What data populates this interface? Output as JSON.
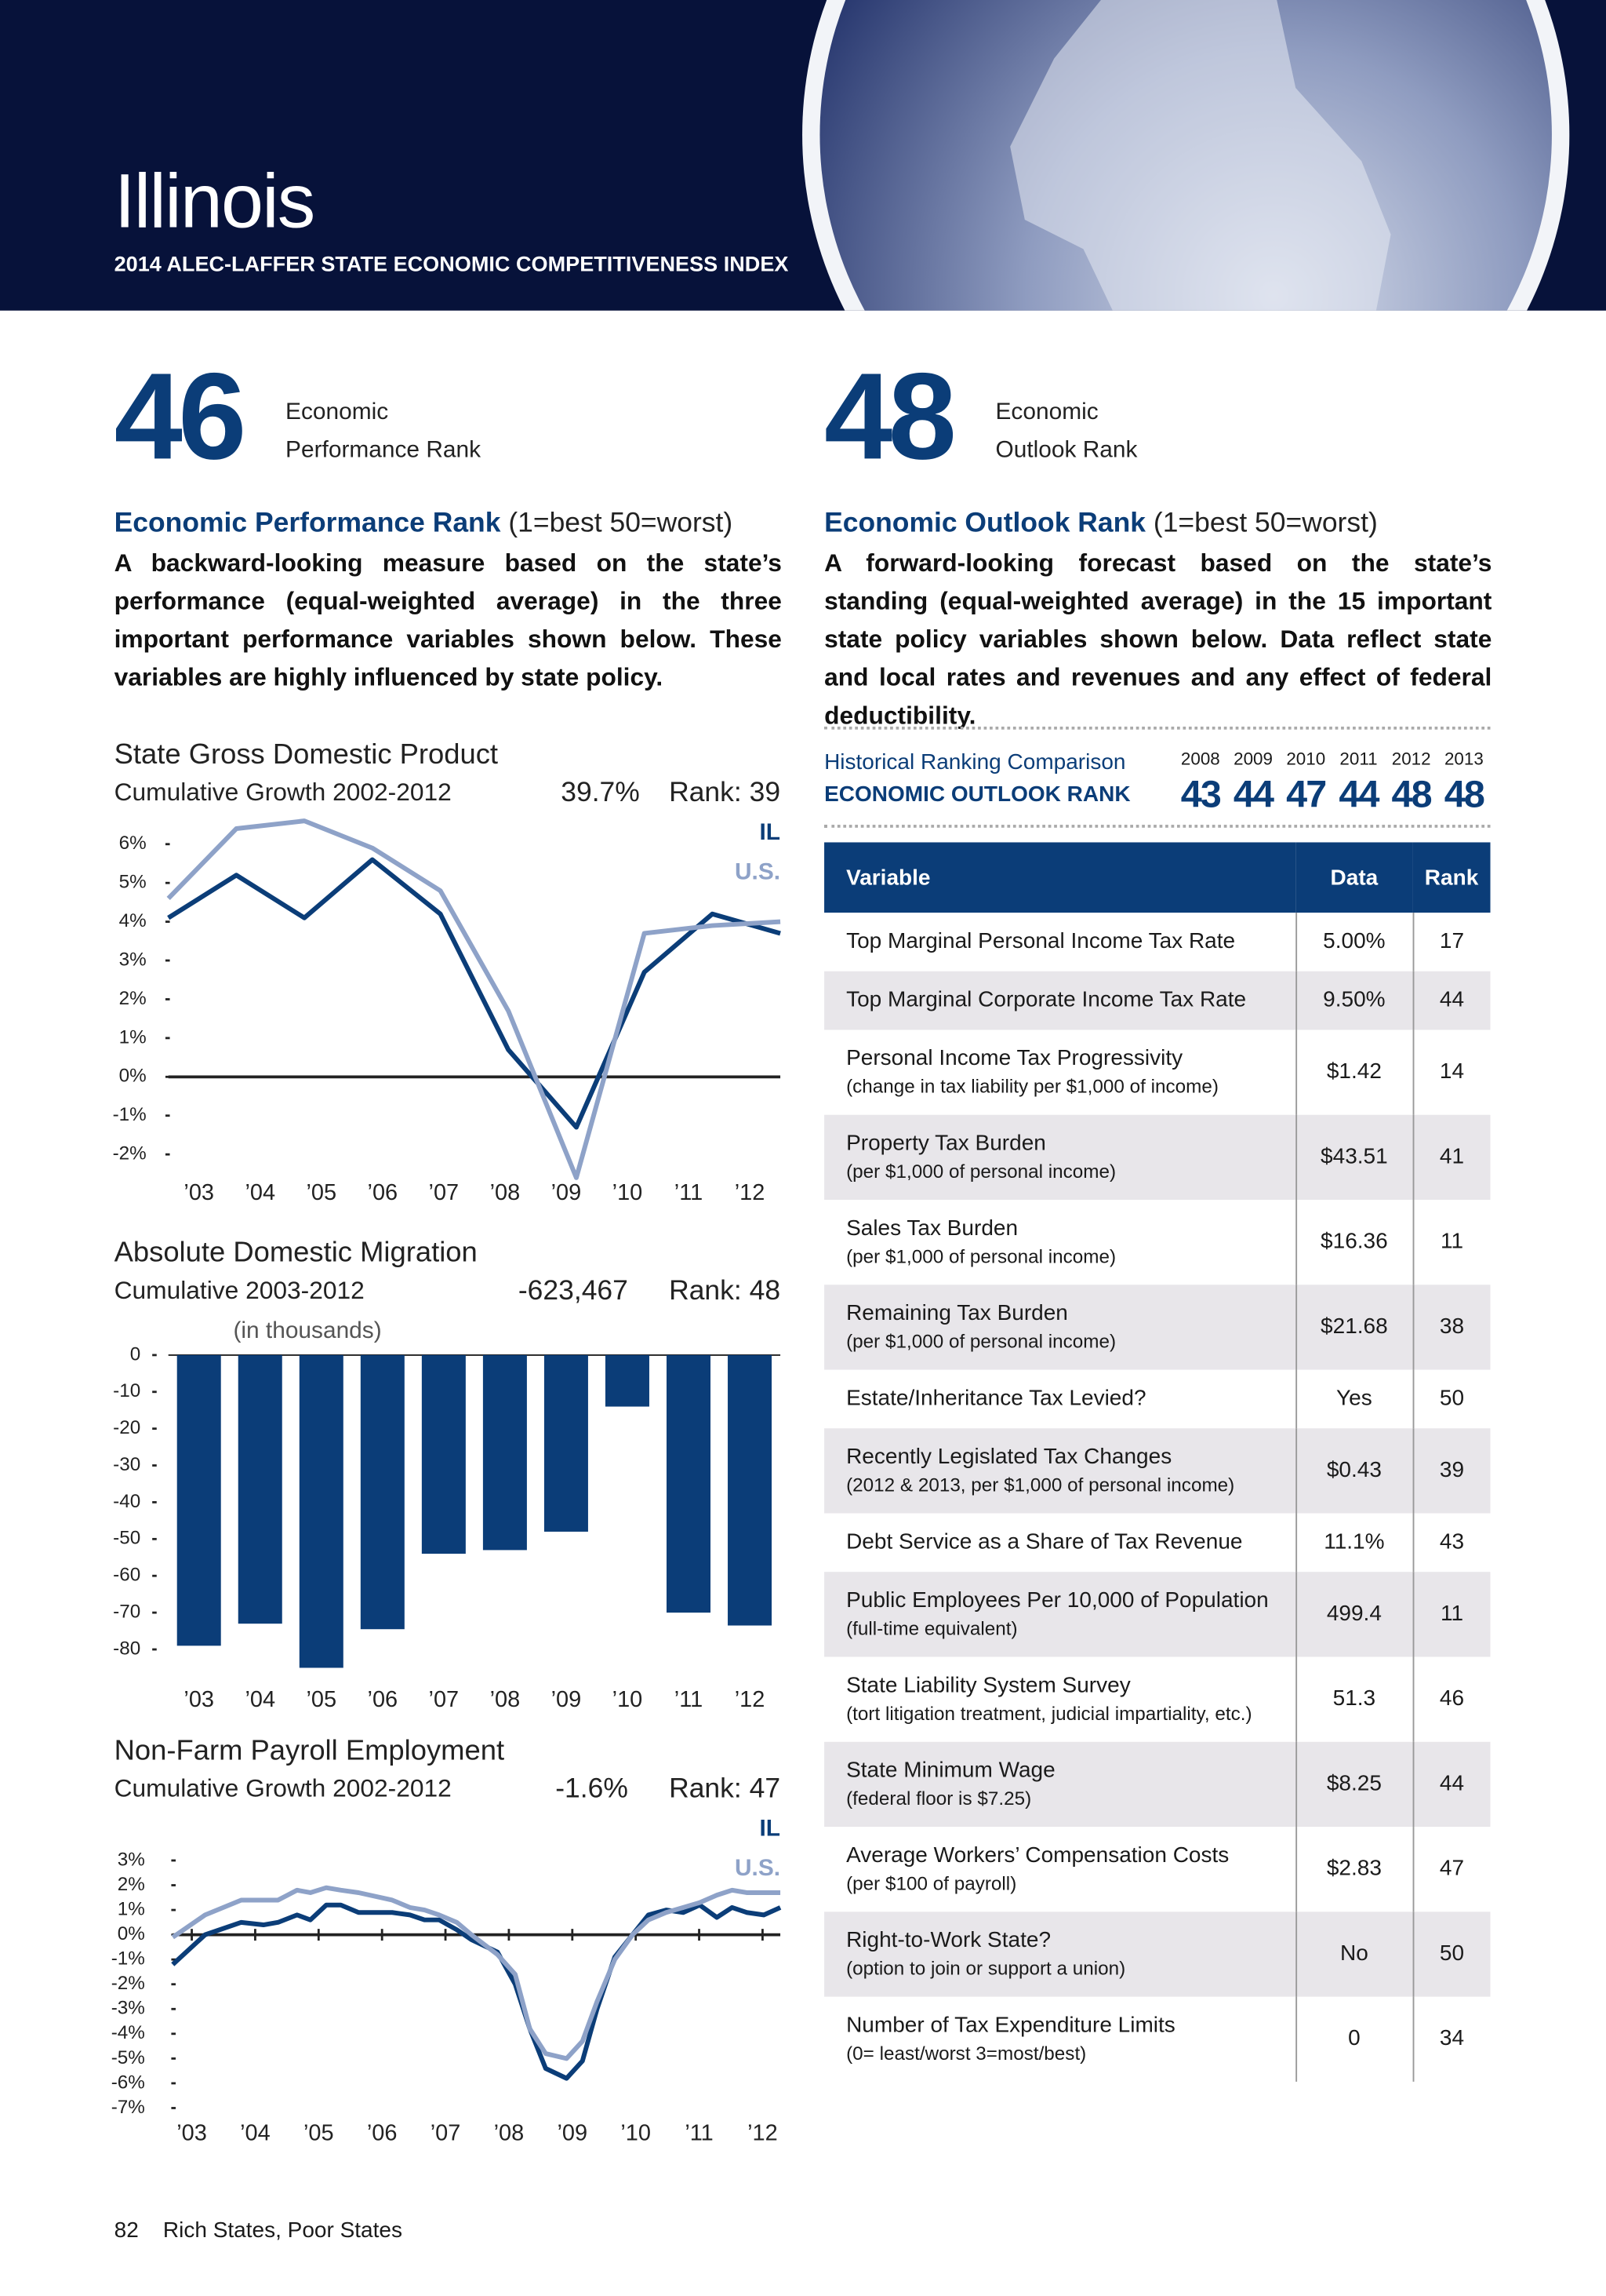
{
  "header": {
    "title": "Illinois",
    "subtitle": "2014 ALEC-LAFFER STATE ECONOMIC COMPETITIVENESS INDEX"
  },
  "performance": {
    "rank": 46,
    "rank_label_1": "Economic",
    "rank_label_2": "Performance Rank",
    "heading": "Economic Performance Rank",
    "scale": "(1=best  50=worst)",
    "description": "A backward-looking measure based on the state’s performance (equal-weighted average) in the three important performance variables shown below. These variables are highly influenced by state policy."
  },
  "outlook": {
    "rank": 48,
    "rank_label_1": "Economic",
    "rank_label_2": "Outlook Rank",
    "heading": "Economic Outlook Rank",
    "scale": "(1=best  50=worst)",
    "description": "A forward-looking forecast based on the state’s standing (equal-weighted average) in the 15 important state policy variables shown below. Data reflect state and local rates and revenues and any effect of federal deductibility."
  },
  "history": {
    "title": "Historical Ranking Comparison",
    "subtitle": "ECONOMIC OUTLOOK RANK",
    "years": [
      2008,
      2009,
      2010,
      2011,
      2012,
      2013
    ],
    "ranks": [
      43,
      44,
      47,
      44,
      48,
      48
    ]
  },
  "table": {
    "columns": [
      "Variable",
      "Data",
      "Rank"
    ],
    "rows": [
      {
        "variable": "Top Marginal Personal Income Tax Rate",
        "data": "5.00%",
        "rank": 17
      },
      {
        "variable": "Top Marginal Corporate Income Tax Rate",
        "data": "9.50%",
        "rank": 44
      },
      {
        "variable": "Personal Income Tax Progressivity",
        "note": "(change in tax liability per $1,000 of income)",
        "data": "$1.42",
        "rank": 14
      },
      {
        "variable": "Property Tax Burden",
        "note": "(per $1,000 of personal income)",
        "data": "$43.51",
        "rank": 41
      },
      {
        "variable": "Sales Tax Burden",
        "note": "(per $1,000 of personal income)",
        "data": "$16.36",
        "rank": 11
      },
      {
        "variable": "Remaining Tax Burden",
        "note": "(per $1,000 of personal income)",
        "data": "$21.68",
        "rank": 38
      },
      {
        "variable": "Estate/Inheritance Tax Levied?",
        "data": "Yes",
        "rank": 50
      },
      {
        "variable": "Recently Legislated Tax Changes",
        "note": "(2012 & 2013, per $1,000 of personal income)",
        "data": "$0.43",
        "rank": 39
      },
      {
        "variable": "Debt Service as a Share of Tax Revenue",
        "data": "11.1%",
        "rank": 43
      },
      {
        "variable": "Public Employees Per 10,000 of Population",
        "note": "(full-time equivalent)",
        "data": "499.4",
        "rank": 11
      },
      {
        "variable": "State Liability System Survey",
        "note": "(tort litigation treatment, judicial impartiality, etc.)",
        "data": "51.3",
        "rank": 46
      },
      {
        "variable": "State Minimum Wage",
        "note": "(federal floor is $7.25)",
        "data": "$8.25",
        "rank": 44
      },
      {
        "variable": "Average Workers’ Compensation Costs",
        "note": "(per $100 of payroll)",
        "data": "$2.83",
        "rank": 47
      },
      {
        "variable": "Right-to-Work State?",
        "note": "(option to join or support a union)",
        "data": "No",
        "rank": 50
      },
      {
        "variable": "Number of Tax Expenditure Limits",
        "note": "(0= least/worst   3=most/best)",
        "data": "0",
        "rank": 34
      }
    ]
  },
  "footer": {
    "page": 82,
    "title": "Rich States, Poor States"
  },
  "chart_data": [
    {
      "type": "line",
      "title": "State Gross Domestic Product",
      "subtitle": "Cumulative Growth 2002-2012",
      "summary": "39.7%",
      "rank": "Rank: 39",
      "categories": [
        "’03",
        "’04",
        "’05",
        "’06",
        "’07",
        "’08",
        "’09",
        "’10",
        "’11",
        "’12"
      ],
      "series": [
        {
          "name": "IL",
          "color": "#0b3d78",
          "values": [
            4.1,
            5.2,
            4.1,
            5.6,
            4.2,
            0.7,
            -1.3,
            2.7,
            4.2,
            3.7
          ]
        },
        {
          "name": "U.S.",
          "color": "#8ea2c8",
          "values": [
            4.6,
            6.4,
            6.6,
            5.9,
            4.8,
            1.7,
            -2.6,
            3.7,
            3.9,
            4.0
          ]
        }
      ],
      "ylim": [
        -3,
        6.5
      ],
      "yticks": [
        {
          "value": 6,
          "label": "6%"
        },
        {
          "value": 5,
          "label": "5%"
        },
        {
          "value": 4,
          "label": "4%"
        },
        {
          "value": 3,
          "label": "3%"
        },
        {
          "value": 2,
          "label": "2%"
        },
        {
          "value": 1,
          "label": "1%"
        },
        {
          "value": 0,
          "label": "0%"
        },
        {
          "value": -1,
          "label": "-1%"
        },
        {
          "value": -2,
          "label": "-2%"
        }
      ]
    },
    {
      "type": "bar",
      "title": "Absolute Domestic Migration",
      "subtitle": "Cumulative 2003-2012",
      "summary": "-623,467",
      "rank": "Rank: 48",
      "unit_note": "(in thousands)",
      "categories": [
        "’03",
        "’04",
        "’05",
        "’06",
        "’07",
        "’08",
        "’09",
        "’10",
        "’11",
        "’12"
      ],
      "values": [
        -79,
        -73,
        -85,
        -74.5,
        -54,
        -53,
        -48,
        -14,
        -70,
        -73.5
      ],
      "color": "#0b3d78",
      "ylim": [
        -86,
        0
      ],
      "yticks": [
        0,
        -10,
        -20,
        -30,
        -40,
        -50,
        -60,
        -70,
        -80
      ]
    },
    {
      "type": "line",
      "title": "Non-Farm Payroll Employment",
      "subtitle": "Cumulative Growth 2002-2012",
      "summary": "-1.6%",
      "rank": "Rank: 47",
      "x": [
        2002.7,
        2003.21,
        2003.78,
        2004.13,
        2004.36,
        2004.66,
        2004.87,
        2005.12,
        2005.35,
        2005.63,
        2006.16,
        2006.44,
        2006.67,
        2006.9,
        2007.18,
        2007.41,
        2007.82,
        2008.1,
        2008.33,
        2008.58,
        2008.91,
        2009.16,
        2009.39,
        2009.67,
        2009.95,
        2010.2,
        2010.48,
        2010.75,
        2011.01,
        2011.28,
        2011.52,
        2011.75,
        2012.02,
        2012.28
      ],
      "series": [
        {
          "name": "IL",
          "color": "#0b3d78",
          "values": [
            -1.2,
            0,
            0.5,
            0.4,
            0.5,
            0.8,
            0.6,
            1.2,
            1.2,
            0.9,
            0.9,
            0.8,
            0.6,
            0.6,
            0.2,
            -0.2,
            -0.7,
            -2,
            -3.8,
            -5.4,
            -5.8,
            -5.1,
            -3,
            -0.9,
            0,
            0.8,
            1,
            0.9,
            1.2,
            0.7,
            1.1,
            0.9,
            0.8,
            1.1
          ]
        },
        {
          "name": "U.S.",
          "color": "#8ea2c8",
          "values": [
            -0.1,
            0.8,
            1.4,
            1.4,
            1.4,
            1.8,
            1.7,
            1.9,
            1.8,
            1.7,
            1.4,
            1.1,
            1,
            0.8,
            0.5,
            0,
            -0.8,
            -1.6,
            -3.8,
            -4.8,
            -5,
            -4.3,
            -2.7,
            -1,
            0,
            0.6,
            0.9,
            1.1,
            1.3,
            1.6,
            1.8,
            1.7,
            1.7,
            1.7
          ]
        }
      ],
      "xlim": [
        2002.7,
        2012.28
      ],
      "xticks": [
        {
          "value": 2003,
          "label": "’03"
        },
        {
          "value": 2004,
          "label": "’04"
        },
        {
          "value": 2005,
          "label": "’05"
        },
        {
          "value": 2006,
          "label": "’06"
        },
        {
          "value": 2007,
          "label": "’07"
        },
        {
          "value": 2008,
          "label": "’08"
        },
        {
          "value": 2009,
          "label": "’09"
        },
        {
          "value": 2010,
          "label": "’10"
        },
        {
          "value": 2011,
          "label": "’11"
        },
        {
          "value": 2012,
          "label": "’12"
        }
      ],
      "ylim": [
        -7,
        3
      ],
      "yticks": [
        {
          "value": 3,
          "label": "3%"
        },
        {
          "value": 2,
          "label": "2%"
        },
        {
          "value": 1,
          "label": "1%"
        },
        {
          "value": 0,
          "label": "0%"
        },
        {
          "value": -1,
          "label": "-1%"
        },
        {
          "value": -2,
          "label": "-2%"
        },
        {
          "value": -3,
          "label": "-3%"
        },
        {
          "value": -4,
          "label": "-4%"
        },
        {
          "value": -5,
          "label": "-5%"
        },
        {
          "value": -6,
          "label": "-6%"
        },
        {
          "value": -7,
          "label": "-7%"
        }
      ]
    }
  ]
}
